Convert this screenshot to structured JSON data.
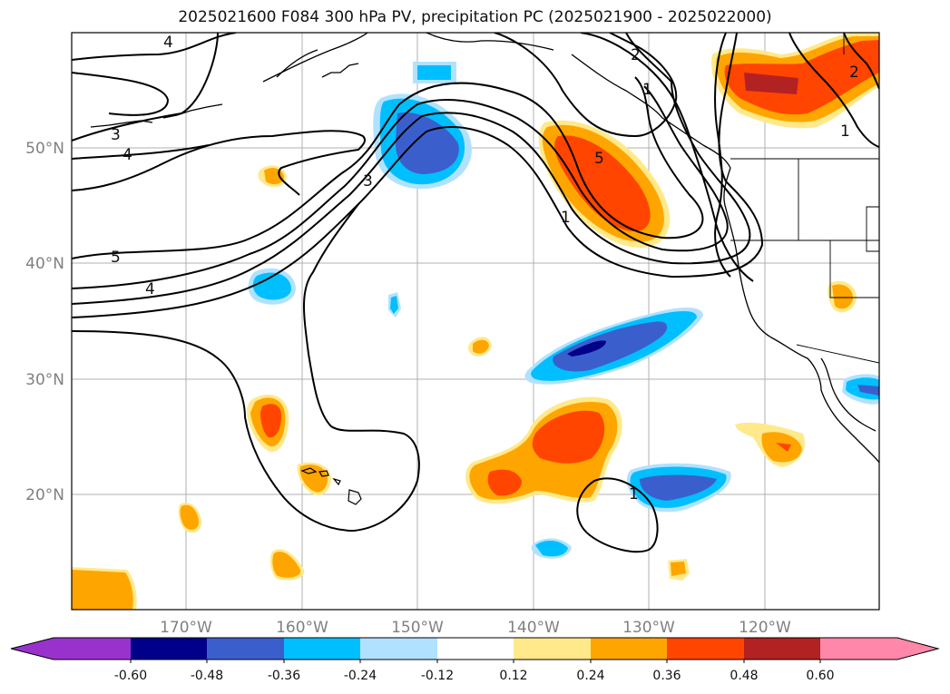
{
  "title": "2025021600 F084 300 hPa PV, precipitation PC (2025021900 - 2025022000)",
  "latitude_labels": [
    "50°N",
    "40°N",
    "30°N",
    "20°N"
  ],
  "longitude_labels": [
    "170°W",
    "160°W",
    "150°W",
    "140°W",
    "130°W",
    "120°W"
  ],
  "contour_labels": [
    "4",
    "3",
    "4",
    "3",
    "5",
    "4",
    "2",
    "1",
    "5",
    "1",
    "2",
    "1",
    "1"
  ],
  "colorbar": {
    "tick_labels": [
      "-0.60",
      "-0.48",
      "-0.36",
      "-0.24",
      "-0.12",
      "0.12",
      "0.24",
      "0.36",
      "0.48",
      "0.60"
    ],
    "colors": [
      "#9932CC",
      "#00008B",
      "#3A5FCD",
      "#00BFFF",
      "#B0E2FF",
      "#FFFFFF",
      "#FFE98A",
      "#FFA500",
      "#FF4500",
      "#B22222",
      "#FF88AA"
    ]
  }
}
